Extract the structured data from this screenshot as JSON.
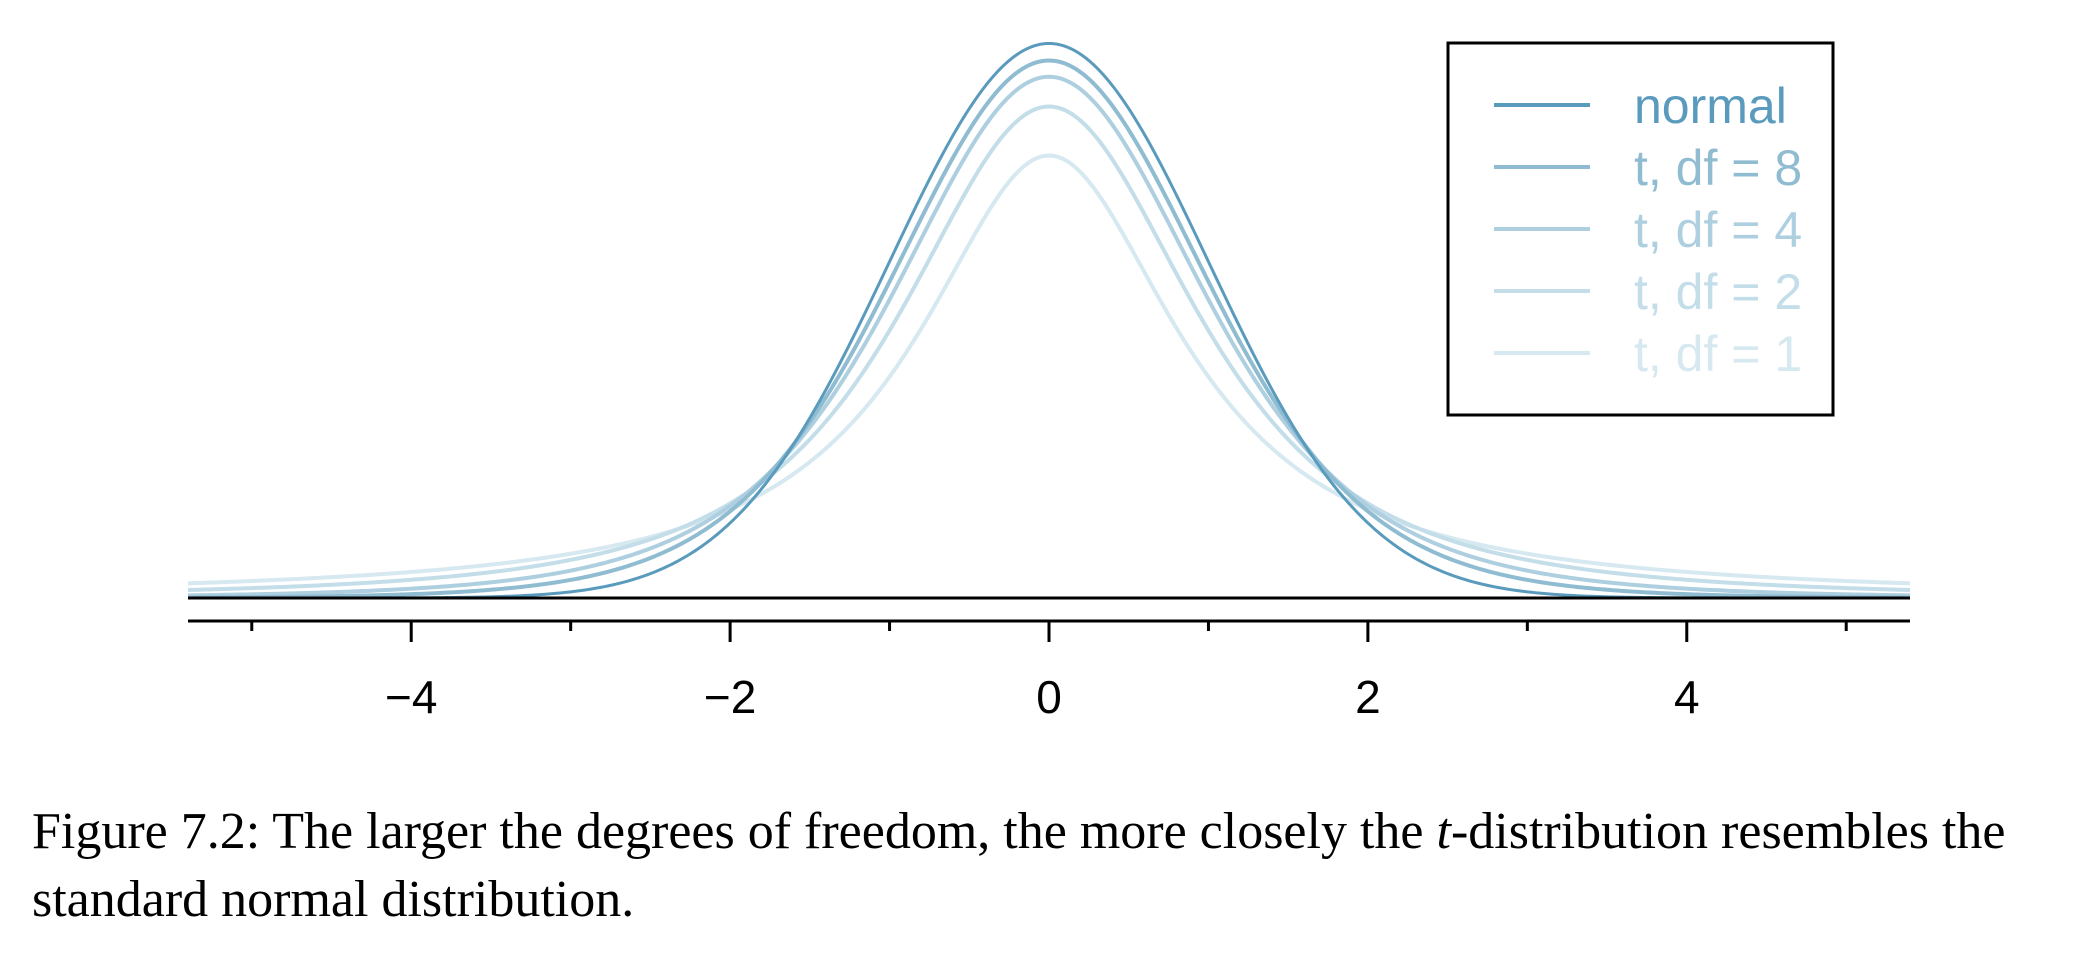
{
  "chart_data": {
    "type": "line",
    "xlabel": "",
    "ylabel": "",
    "xlim": [
      -5.4,
      5.4
    ],
    "xticks": [
      -4,
      -2,
      0,
      2,
      4
    ],
    "xtick_labels": [
      "−4",
      "−2",
      "0",
      "2",
      "4"
    ],
    "minor_xticks": [
      -5,
      -3,
      -1,
      1,
      3,
      5
    ],
    "legend_position": "top-right",
    "grid": false,
    "series": [
      {
        "name": "t, df = 1",
        "distribution": "t",
        "df": 1,
        "color": "#d6e8f0"
      },
      {
        "name": "t, df = 2",
        "distribution": "t",
        "df": 2,
        "color": "#c3dde9"
      },
      {
        "name": "t, df = 4",
        "distribution": "t",
        "df": 4,
        "color": "#aecfe0"
      },
      {
        "name": "t, df = 8",
        "distribution": "t",
        "df": 8,
        "color": "#90bcd2"
      },
      {
        "name": "normal",
        "distribution": "normal",
        "df": null,
        "color": "#5a9bbd"
      }
    ],
    "legend_order": [
      "normal",
      "t, df = 8",
      "t, df = 4",
      "t, df = 2",
      "t, df = 1"
    ]
  },
  "caption": {
    "prefix": "Figure 7.2: The larger the degrees of freedom, the more closely the ",
    "italic": "t",
    "suffix": "-distribution resembles the standard normal distribution."
  }
}
